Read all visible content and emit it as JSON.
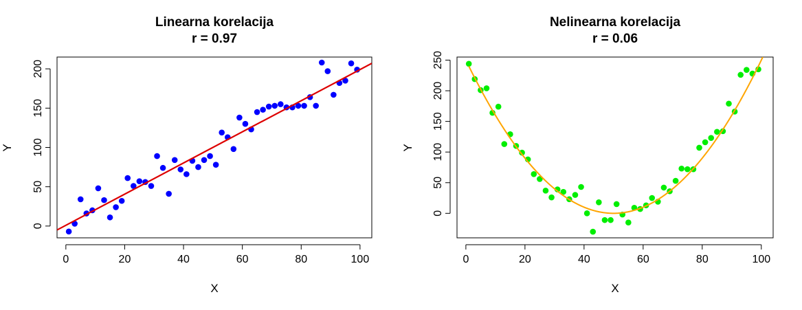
{
  "chart_data": [
    {
      "type": "scatter",
      "title": "Linearna korelacija",
      "subtitle": "r = 0.97",
      "xlabel": "X",
      "ylabel": "Y",
      "xlim": [
        -3,
        104
      ],
      "ylim": [
        -15,
        215
      ],
      "xticks": [
        "0",
        "20",
        "40",
        "60",
        "80",
        "100"
      ],
      "yticks": [
        "0",
        "50",
        "100",
        "150",
        "200"
      ],
      "grid": false,
      "point_color": "#0000ff",
      "line_color": "#dd0000",
      "series": [
        {
          "x": [
            1,
            3,
            5,
            7,
            9,
            11,
            13,
            15,
            17,
            19,
            21,
            23,
            25,
            27,
            29,
            31,
            33,
            35,
            37,
            39,
            41,
            43,
            45,
            47,
            49,
            51,
            53,
            55,
            57,
            59,
            61,
            63,
            65,
            67,
            69,
            71,
            73,
            75,
            77,
            79,
            81,
            83,
            85,
            87,
            89,
            91,
            93,
            95,
            97,
            99
          ],
          "y": [
            -7,
            3,
            34,
            16,
            20,
            48,
            33,
            11,
            24,
            32,
            61,
            51,
            57,
            56,
            51,
            89,
            74,
            41,
            84,
            72,
            66,
            83,
            75,
            84,
            89,
            78,
            119,
            113,
            98,
            138,
            130,
            123,
            145,
            148,
            152,
            153,
            155,
            151,
            151,
            153,
            153,
            164,
            153,
            208,
            197,
            167,
            182,
            185,
            207,
            199
          ]
        }
      ],
      "fit_line": {
        "x": [
          -3,
          104
        ],
        "y": [
          -5,
          207
        ]
      }
    },
    {
      "type": "scatter",
      "title": "Nelinearna korelacija",
      "subtitle": "r = 0.06",
      "xlabel": "X",
      "ylabel": "Y",
      "xlim": [
        -3,
        104
      ],
      "ylim": [
        -40,
        255
      ],
      "xticks": [
        "0",
        "20",
        "40",
        "60",
        "80",
        "100"
      ],
      "yticks": [
        "0",
        "50",
        "100",
        "150",
        "200",
        "250"
      ],
      "grid": false,
      "point_color": "#00ee00",
      "line_color": "#ffa500",
      "series": [
        {
          "x": [
            1,
            3,
            5,
            7,
            9,
            11,
            13,
            15,
            17,
            19,
            21,
            23,
            25,
            27,
            29,
            31,
            33,
            35,
            37,
            39,
            41,
            43,
            45,
            47,
            49,
            51,
            53,
            55,
            57,
            59,
            61,
            63,
            65,
            67,
            69,
            71,
            73,
            75,
            77,
            79,
            81,
            83,
            85,
            87,
            89,
            91,
            93,
            95,
            97,
            99
          ],
          "y": [
            244,
            219,
            201,
            204,
            164,
            174,
            113,
            129,
            110,
            99,
            88,
            64,
            56,
            37,
            26,
            39,
            35,
            23,
            30,
            43,
            0,
            -30,
            18,
            -11,
            -11,
            15,
            -2,
            -15,
            9,
            7,
            13,
            25,
            19,
            42,
            36,
            53,
            73,
            72,
            72,
            107,
            116,
            123,
            133,
            134,
            179,
            166,
            226,
            234,
            228,
            235
          ]
        }
      ],
      "fit_curve": {
        "a": 0.1,
        "h": 50,
        "k": 0
      }
    }
  ]
}
